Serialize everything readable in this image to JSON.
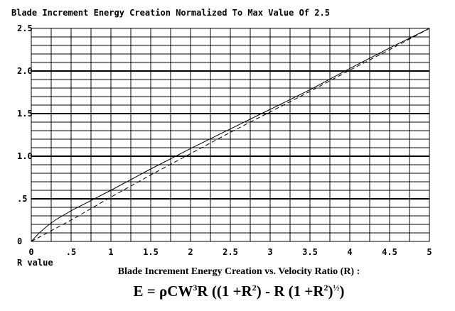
{
  "chart_data": {
    "type": "line",
    "title": "Blade Increment Energy Creation Normalized To Max Value Of 2.5",
    "xlabel": "R value",
    "ylabel": "",
    "xlim": [
      0,
      5
    ],
    "ylim": [
      0,
      2.5
    ],
    "x_tick_labels": [
      "0",
      ".5",
      "1",
      "1.5",
      "2",
      "2.5",
      "3",
      "3.5",
      "4",
      "4.5",
      "5"
    ],
    "y_tick_labels": [
      "0",
      ".5",
      "1.0",
      "1.5",
      "2.0",
      "2.5"
    ],
    "grid": true,
    "series": [
      {
        "style": "solid",
        "x": [
          0,
          0.1,
          0.2,
          0.3,
          0.5,
          1.0,
          1.5,
          2.0,
          2.5,
          3.0,
          3.5,
          4.0,
          4.5,
          5.0
        ],
        "y": [
          0,
          0.1,
          0.18,
          0.25,
          0.36,
          0.6,
          0.85,
          1.09,
          1.32,
          1.55,
          1.78,
          2.03,
          2.27,
          2.5
        ]
      },
      {
        "style": "dashed",
        "x": [
          0,
          0.1,
          0.2,
          0.3,
          0.5,
          1.0,
          1.5,
          2.0,
          2.5,
          3.0,
          3.5,
          4.0,
          4.5,
          5.0
        ],
        "y": [
          0,
          0.05,
          0.1,
          0.15,
          0.25,
          0.52,
          0.78,
          1.03,
          1.28,
          1.52,
          1.76,
          2.01,
          2.25,
          2.5
        ]
      }
    ],
    "caption": "Blade Increment Energy Creation vs. Velocity Ratio (R) :",
    "equation": {
      "lhs": "E = ρCW",
      "exp1": "3",
      "mid": "R ((1 +R",
      "exp2": "2",
      "mid2": ") - R (1 +R",
      "exp3": "2",
      "tail": ")",
      "exp4": "½",
      "end": ")"
    }
  }
}
